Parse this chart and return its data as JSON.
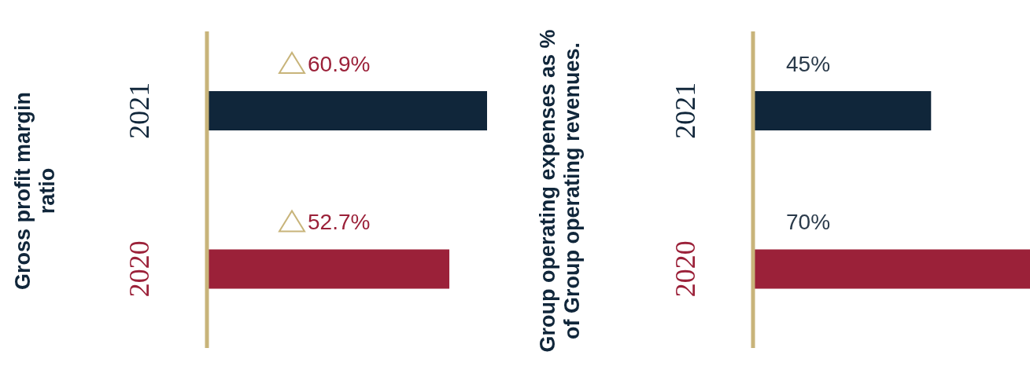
{
  "chart_data": [
    {
      "type": "bar",
      "orientation": "horizontal",
      "ylabel": "Gross profit margin ratio",
      "categories": [
        "2021",
        "2020"
      ],
      "values": [
        60.9,
        52.7
      ],
      "colors": [
        "#10263a",
        "#9b2139"
      ],
      "value_labels": [
        "60.9%",
        "52.7%"
      ],
      "legend": false
    },
    {
      "type": "bar",
      "orientation": "horizontal",
      "ylabel": "Group operating expenses as % of Group operating revenues.",
      "categories": [
        "2021",
        "2020"
      ],
      "values": [
        45,
        70
      ],
      "colors": [
        "#10263a",
        "#9b2139"
      ],
      "value_labels": [
        "45%",
        "70%"
      ],
      "legend": false
    }
  ]
}
